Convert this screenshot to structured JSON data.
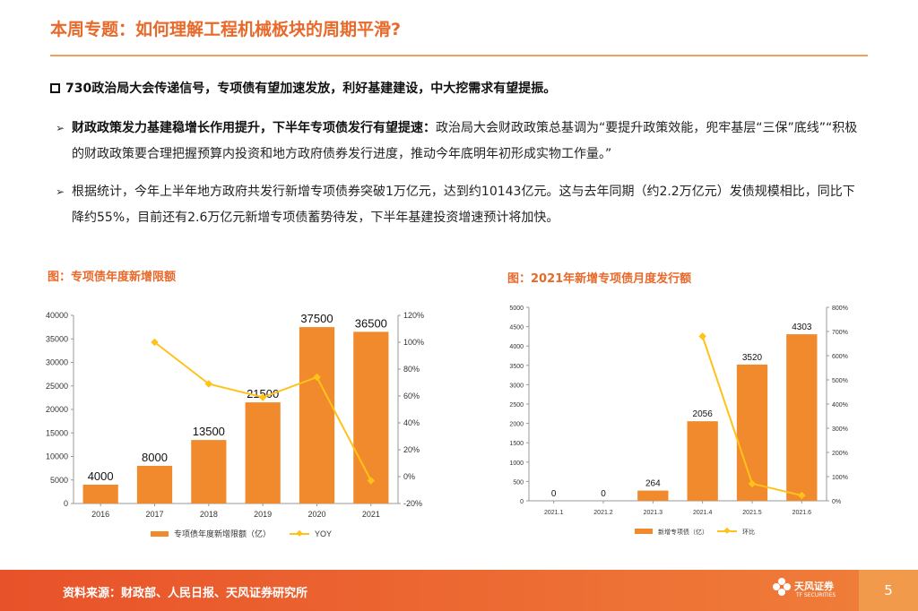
{
  "header": {
    "title": "本周专题：如何理解工程机械板块的周期平滑?"
  },
  "headline": "730政治局大会传递信号，专项债有望加速发放，利好基建建设，中大挖需求有望提振。",
  "bullets": [
    {
      "bold": "财政政策发力基建稳增长作用提升，下半年专项债发行有望提速：",
      "text": "政治局大会财政政策总基调为“要提升政策效能，兜牢基层“三保”底线”“积极的财政政策要合理把握预算内投资和地方政府债券发行进度，推动今年底明年初形成实物工作量。”"
    },
    {
      "bold": "",
      "text": "根据统计，今年上半年地方政府共发行新增专项债券突破1万亿元，达到约10143亿元。这与去年同期（约2.2万亿元）发债规模相比，同比下降约55%，目前还有2.6万亿元新增专项债蓄势待发，下半年基建投资增速预计将加快。"
    }
  ],
  "figures": {
    "fig1_label": "图：专项债年度新增限额",
    "fig2_label": "图：2021年新增专项债月度发行额"
  },
  "chart_data": [
    {
      "type": "bar",
      "categories": [
        "2016",
        "2017",
        "2018",
        "2019",
        "2020",
        "2021"
      ],
      "series": [
        {
          "name": "专项债年度新增限额（亿）",
          "values": [
            4000,
            8000,
            13500,
            21500,
            37500,
            36500
          ],
          "color": "#f08a2c"
        },
        {
          "name": "YOY",
          "values": [
            null,
            1.0,
            0.69,
            0.59,
            0.74,
            -0.03
          ],
          "color": "#ffc21a",
          "axis": "right"
        }
      ],
      "left_ticks": [
        "0",
        "5000",
        "10000",
        "15000",
        "20000",
        "25000",
        "30000",
        "35000",
        "40000"
      ],
      "right_ticks": [
        "-20%",
        "0%",
        "20%",
        "40%",
        "60%",
        "80%",
        "100%",
        "120%"
      ],
      "ylim": [
        0,
        40000
      ],
      "y2lim": [
        -0.2,
        1.2
      ],
      "legend": "bottom"
    },
    {
      "type": "bar",
      "categories": [
        "2021.1",
        "2021.2",
        "2021.3",
        "2021.4",
        "2021.5",
        "2021.6"
      ],
      "series": [
        {
          "name": "新增专项债（亿）",
          "values": [
            0,
            0,
            264,
            2056,
            3520,
            4303
          ],
          "color": "#f08a2c"
        },
        {
          "name": "环比",
          "values": [
            null,
            null,
            null,
            6.8,
            0.71,
            0.22
          ],
          "color": "#ffc21a",
          "axis": "right"
        }
      ],
      "left_ticks": [
        "0",
        "500",
        "1000",
        "1500",
        "2000",
        "2500",
        "3000",
        "3500",
        "4000",
        "4500",
        "5000"
      ],
      "right_ticks": [
        "0%",
        "100%",
        "200%",
        "300%",
        "400%",
        "500%",
        "600%",
        "700%",
        "800%"
      ],
      "ylim": [
        0,
        5000
      ],
      "y2lim": [
        0,
        8
      ],
      "legend": "bottom"
    }
  ],
  "footer": {
    "source": "资料来源：财政部、人民日报、天风证券研究所",
    "logo_text": "天风证券",
    "logo_sub": "TF SECURITIES",
    "page_number": "5"
  }
}
